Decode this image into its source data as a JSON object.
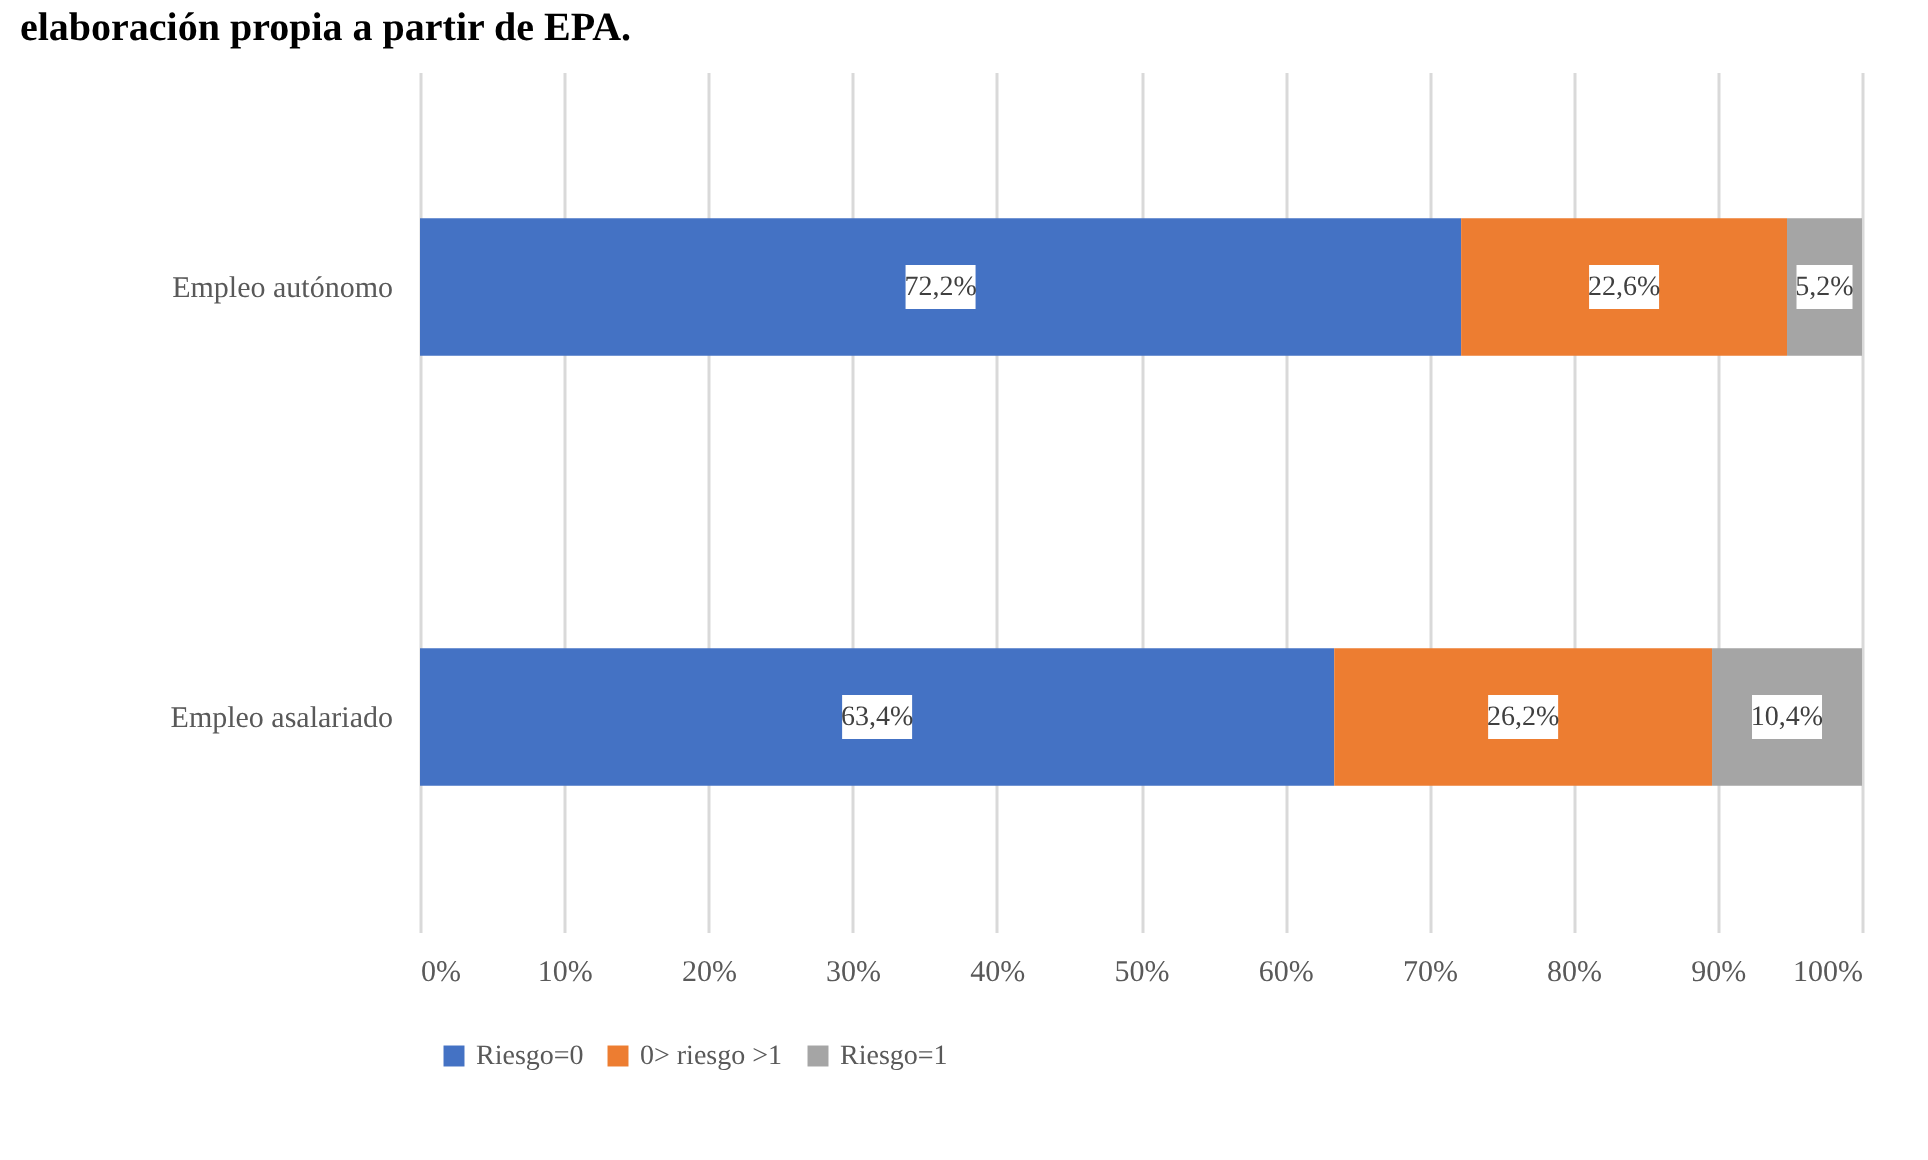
{
  "chart_data": {
    "type": "bar",
    "orientation": "horizontal",
    "stacked": true,
    "title": "elaboración propia a partir de EPA.",
    "categories": [
      "Empleo autónomo",
      "Empleo asalariado"
    ],
    "series": [
      {
        "name": "Riesgo=0",
        "color": "#4472c4",
        "values": [
          72.2,
          63.4
        ],
        "value_labels": [
          "72,2%",
          "63,4%"
        ]
      },
      {
        "name": "0> riesgo >1",
        "color": "#ed7d31",
        "values": [
          22.6,
          26.2
        ],
        "value_labels": [
          "22,6%",
          "26,2%"
        ]
      },
      {
        "name": "Riesgo=1",
        "color": "#a5a5a5",
        "values": [
          5.2,
          10.4
        ],
        "value_labels": [
          "5,2%",
          "10,4%"
        ]
      }
    ],
    "xlim": [
      0,
      100
    ],
    "xticks": [
      {
        "value": 0,
        "label": "0%"
      },
      {
        "value": 10,
        "label": "10%"
      },
      {
        "value": 20,
        "label": "20%"
      },
      {
        "value": 30,
        "label": "30%"
      },
      {
        "value": 40,
        "label": "40%"
      },
      {
        "value": 50,
        "label": "50%"
      },
      {
        "value": 60,
        "label": "60%"
      },
      {
        "value": 70,
        "label": "70%"
      },
      {
        "value": 80,
        "label": "80%"
      },
      {
        "value": 90,
        "label": "90%"
      },
      {
        "value": 100,
        "label": "100%"
      }
    ],
    "grid": "x",
    "legend": "bottom"
  }
}
